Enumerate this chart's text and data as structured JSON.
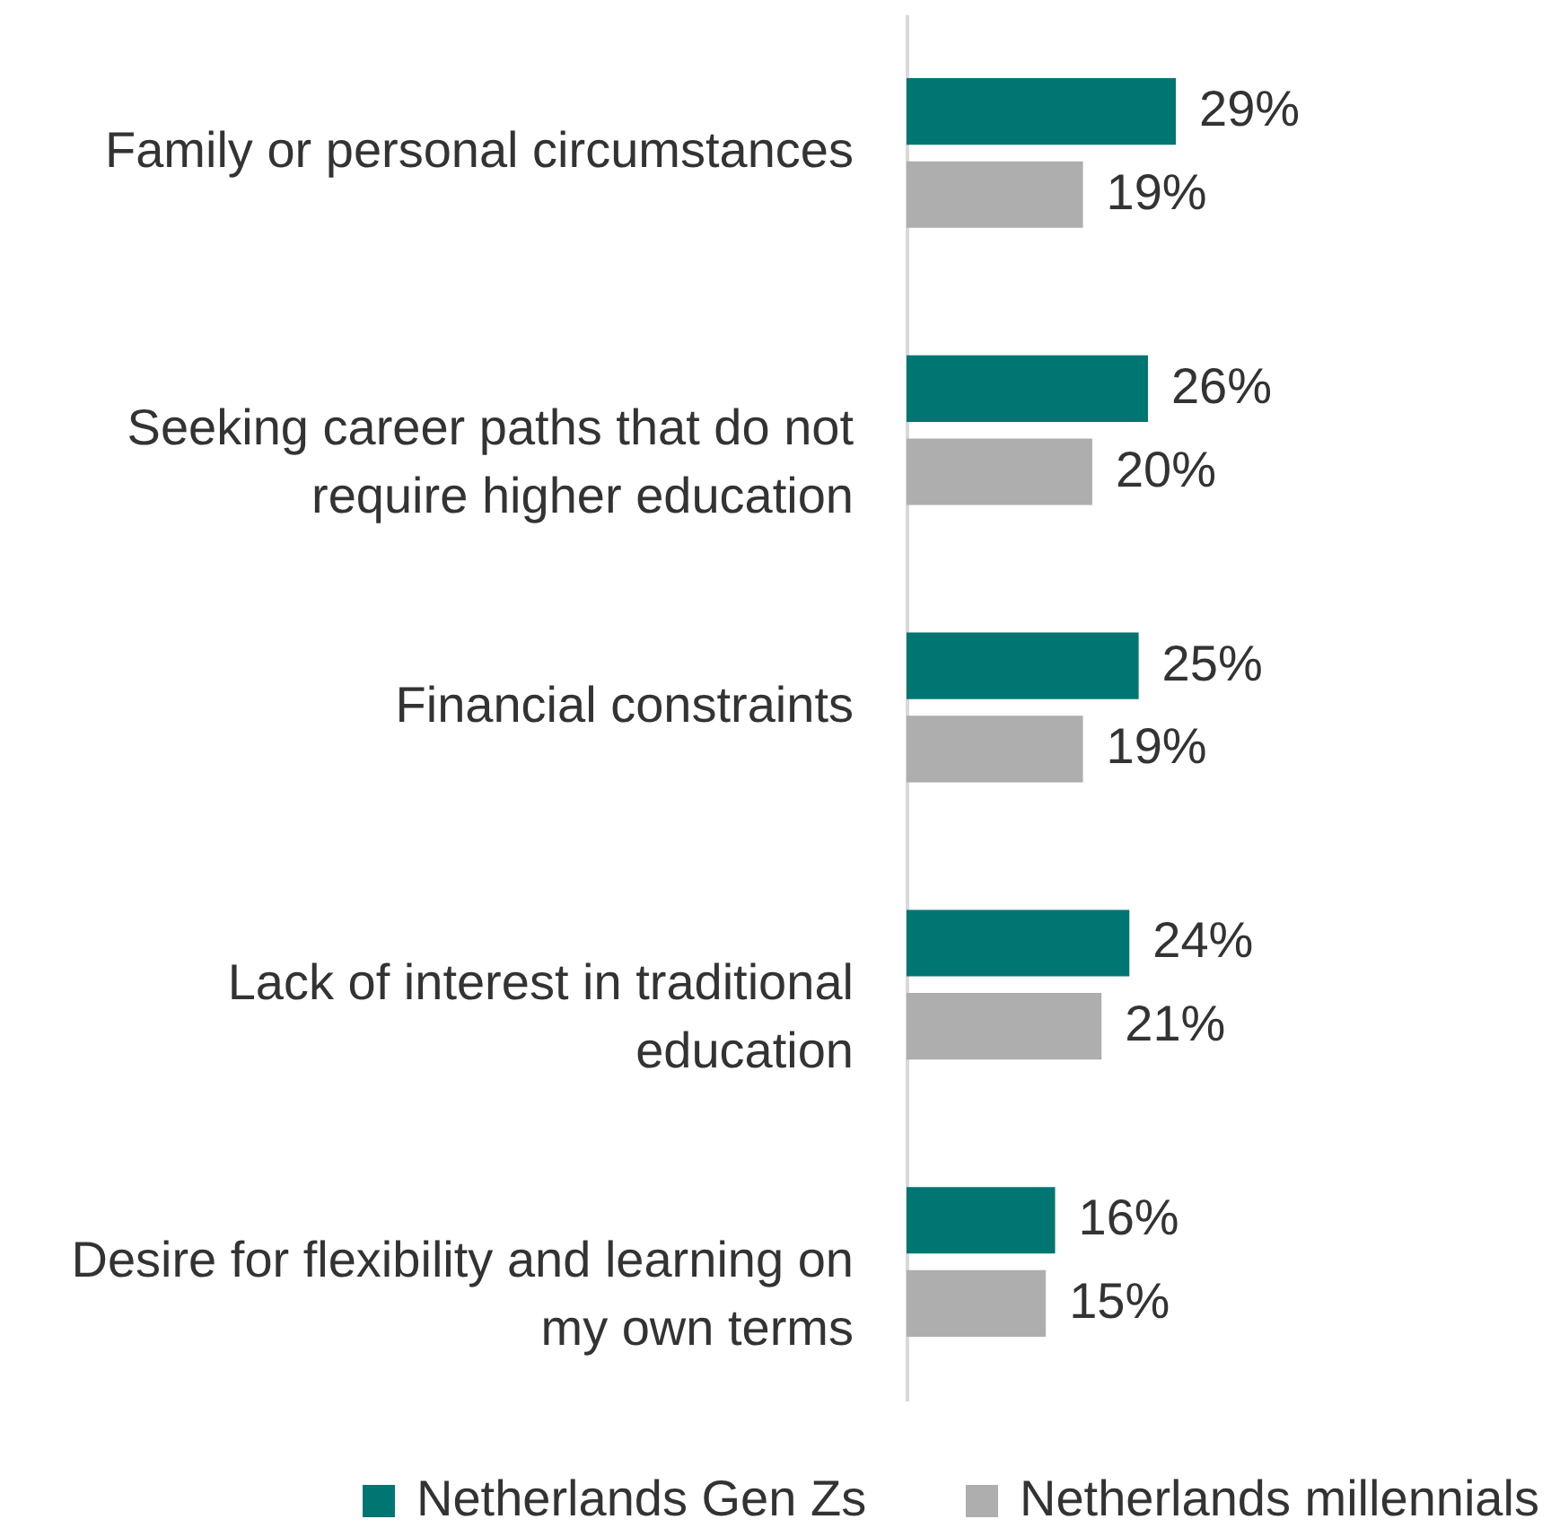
{
  "chart_data": {
    "type": "bar",
    "orientation": "horizontal",
    "legend": "bottom",
    "categories": [
      "Family or personal circumstances",
      "Seeking career paths that do not require higher education",
      "Financial constraints",
      "Lack of interest in traditional education",
      "Desire for flexibility and learning on my own terms"
    ],
    "series": [
      {
        "name": "Netherlands Gen Zs",
        "color": "#007672",
        "values": [
          29,
          26,
          25,
          24,
          16
        ],
        "value_labels": [
          "29%",
          "26%",
          "25%",
          "24%",
          "16%"
        ]
      },
      {
        "name": "Netherlands millennials",
        "color": "#aeaeae",
        "values": [
          19,
          20,
          19,
          21,
          15
        ],
        "value_labels": [
          "19%",
          "20%",
          "19%",
          "21%",
          "15%"
        ]
      }
    ]
  }
}
